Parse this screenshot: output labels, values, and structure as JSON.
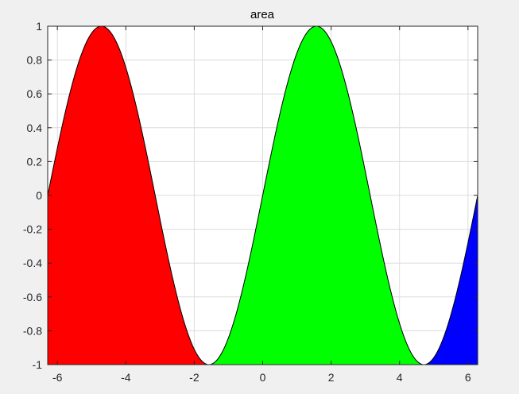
{
  "chart_data": {
    "type": "area",
    "title": "area",
    "xlabel": "",
    "ylabel": "",
    "xlim": [
      -6.283,
      6.283
    ],
    "ylim": [
      -1,
      1
    ],
    "grid": true,
    "function": "sin(x)",
    "x_ticks": [
      -6,
      -4,
      -2,
      0,
      2,
      4,
      6
    ],
    "x_tick_labels": [
      "-6",
      "-4",
      "-2",
      "0",
      "2",
      "4",
      "6"
    ],
    "y_ticks": [
      1,
      0.8,
      0.6,
      0.4,
      0.2,
      0,
      -0.2,
      -0.4,
      -0.6,
      -0.8,
      -1
    ],
    "y_tick_labels": [
      "1",
      "0.8",
      "0.6",
      "0.4",
      "0.2",
      "0",
      "-0.2",
      "-0.4",
      "-0.6",
      "-0.8",
      "-1"
    ],
    "series": [
      {
        "x_range": [
          -6.283,
          -1.571
        ],
        "color": "#ff0000"
      },
      {
        "x_range": [
          -1.571,
          4.712
        ],
        "color": "#00ff00"
      },
      {
        "x_range": [
          4.712,
          6.283
        ],
        "color": "#0000ff"
      }
    ],
    "baseline": -1,
    "axes_color": "#262626",
    "grid_color": "#dcdcdc",
    "background_color": "#ffffff"
  }
}
